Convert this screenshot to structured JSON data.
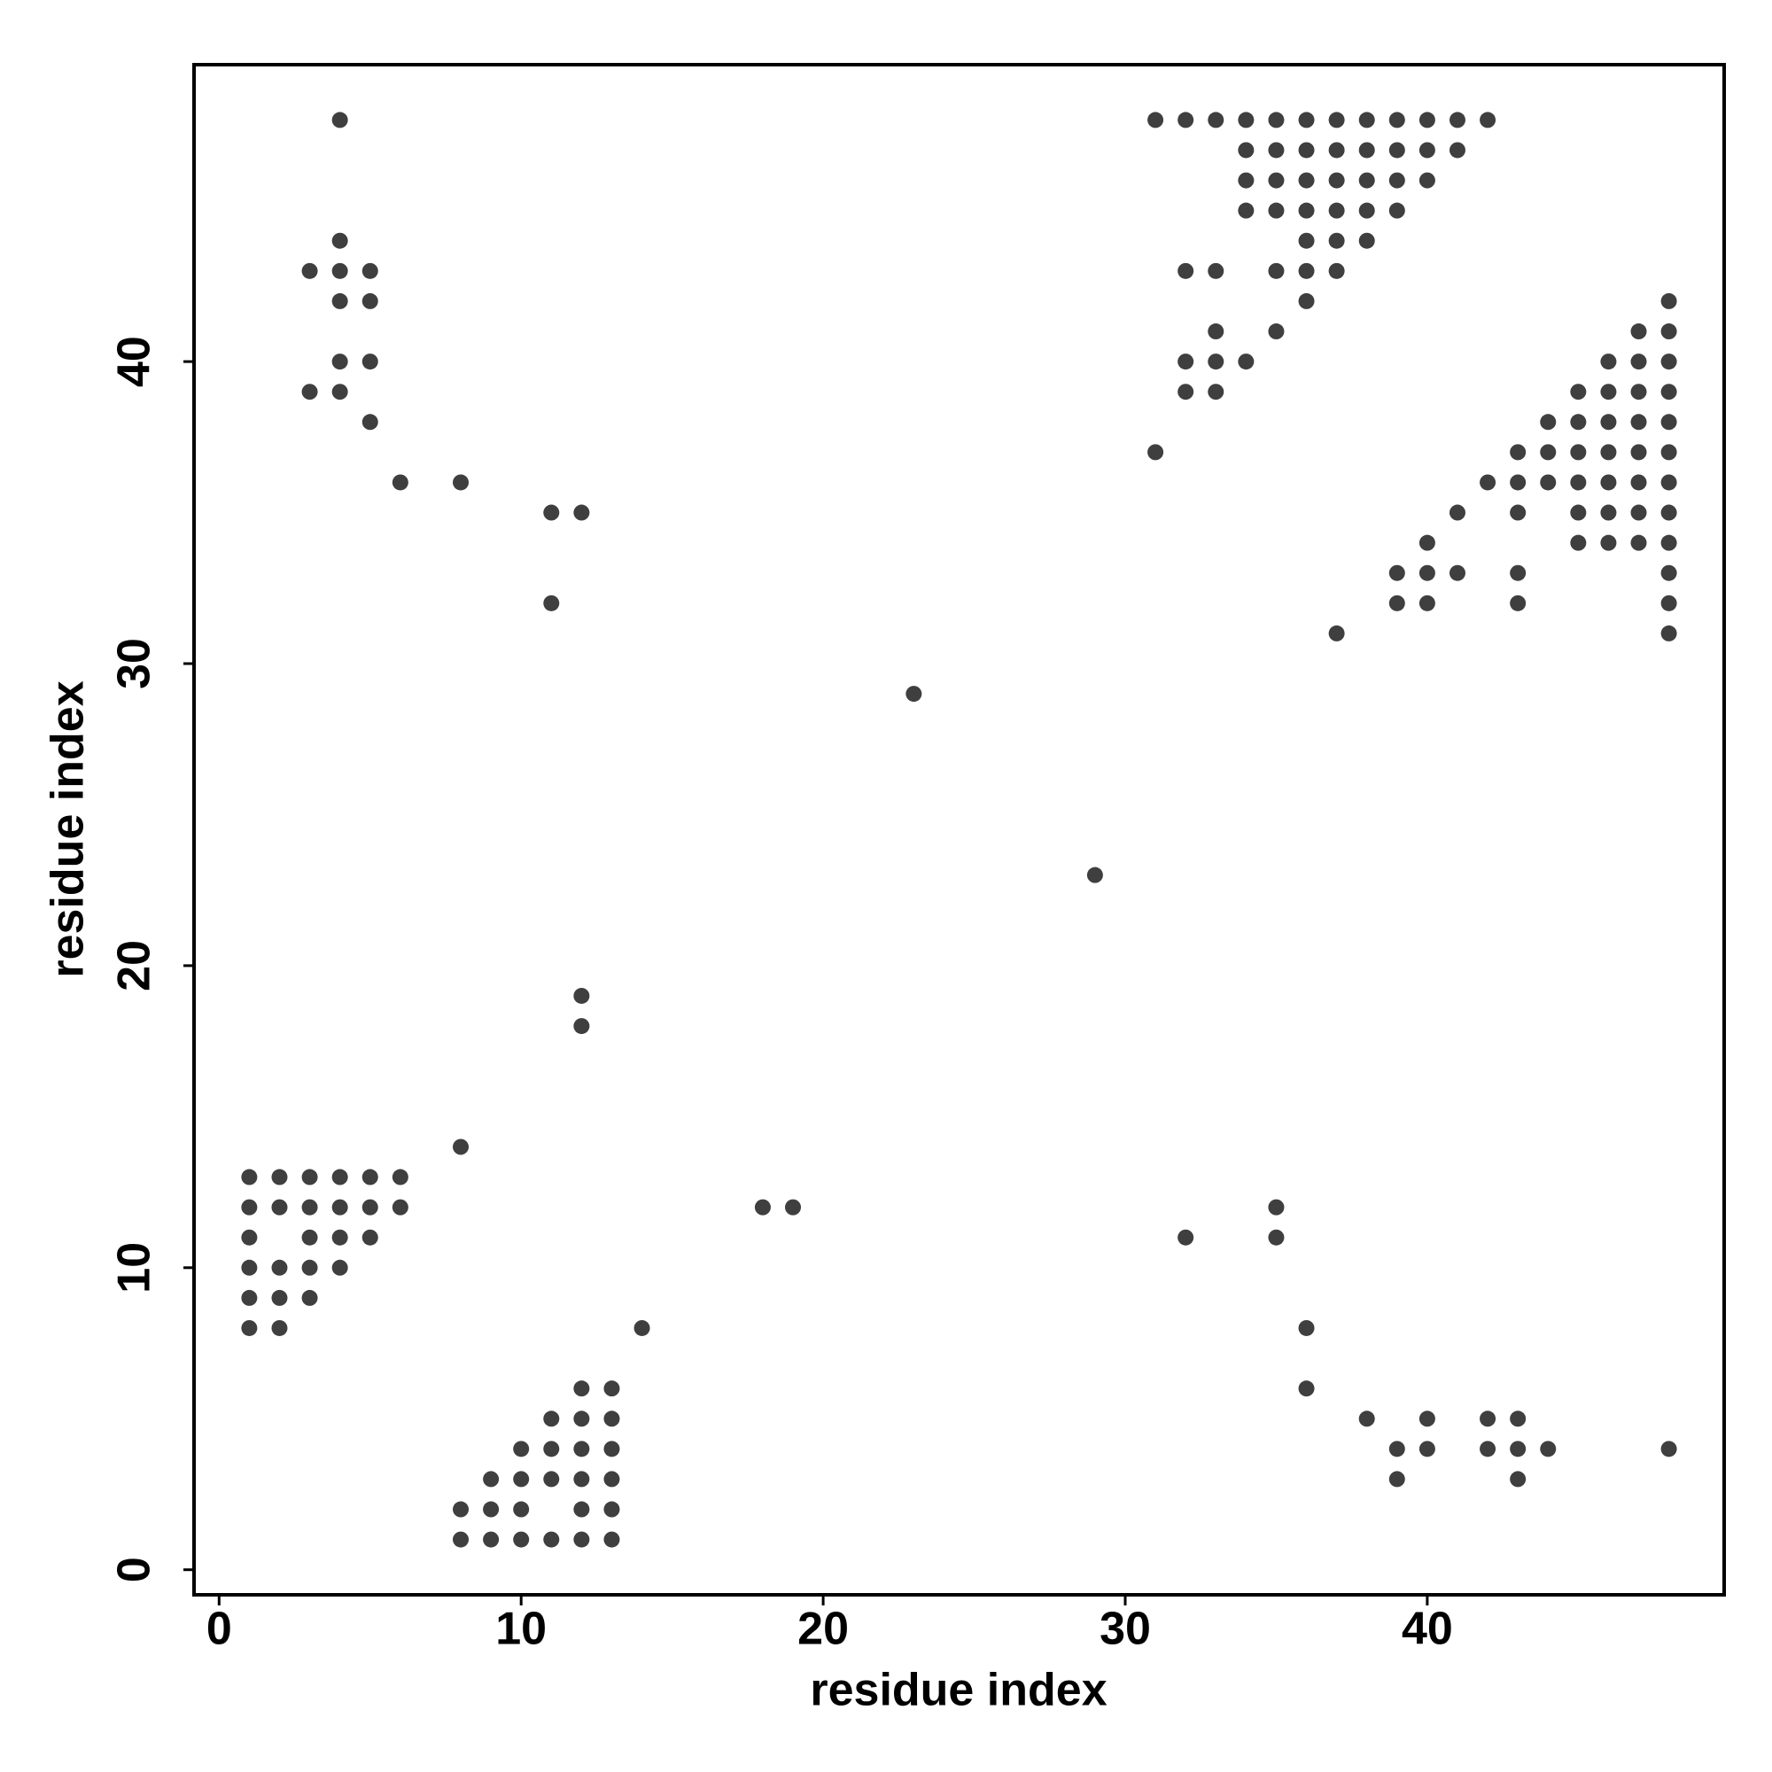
{
  "chart_data": {
    "type": "scatter",
    "x_label": "residue index",
    "y_label": "residue index",
    "xlim": [
      -0.83,
      49.83
    ],
    "ylim": [
      -0.83,
      49.83
    ],
    "xticks": [
      0,
      10,
      20,
      30,
      40
    ],
    "yticks": [
      0,
      10,
      20,
      30,
      40
    ],
    "color": "#3f3f3f",
    "x": [
      4,
      31,
      32,
      33,
      34,
      35,
      36,
      37,
      38,
      39,
      40,
      41,
      42,
      34,
      35,
      36,
      37,
      38,
      39,
      40,
      41,
      34,
      35,
      36,
      37,
      38,
      39,
      40,
      34,
      35,
      36,
      37,
      38,
      39,
      4,
      36,
      37,
      38,
      3,
      4,
      5,
      32,
      33,
      35,
      36,
      37,
      4,
      5,
      36,
      48,
      33,
      35,
      47,
      48,
      4,
      5,
      32,
      33,
      34,
      46,
      47,
      48,
      3,
      4,
      32,
      33,
      45,
      46,
      47,
      48,
      5,
      44,
      45,
      46,
      47,
      48,
      31,
      43,
      44,
      45,
      46,
      47,
      48,
      6,
      8,
      42,
      43,
      44,
      45,
      46,
      47,
      48,
      11,
      12,
      41,
      43,
      45,
      46,
      47,
      48,
      40,
      45,
      46,
      47,
      48,
      39,
      40,
      41,
      43,
      48,
      11,
      39,
      40,
      43,
      48,
      37,
      48,
      23,
      29,
      12,
      12,
      8,
      1,
      2,
      3,
      4,
      5,
      6,
      1,
      2,
      3,
      4,
      5,
      6,
      18,
      19,
      35,
      1,
      3,
      4,
      5,
      32,
      35,
      1,
      2,
      3,
      4,
      1,
      2,
      3,
      1,
      2,
      14,
      36,
      12,
      13,
      36,
      11,
      12,
      13,
      38,
      40,
      42,
      43,
      10,
      11,
      12,
      13,
      39,
      40,
      42,
      43,
      44,
      48,
      9,
      10,
      11,
      12,
      13,
      39,
      43,
      8,
      9,
      10,
      12,
      13,
      8,
      9,
      10,
      11,
      12,
      13
    ],
    "y": [
      48,
      48,
      48,
      48,
      48,
      48,
      48,
      48,
      48,
      48,
      48,
      48,
      48,
      47,
      47,
      47,
      47,
      47,
      47,
      47,
      47,
      46,
      46,
      46,
      46,
      46,
      46,
      46,
      45,
      45,
      45,
      45,
      45,
      45,
      44,
      44,
      44,
      44,
      43,
      43,
      43,
      43,
      43,
      43,
      43,
      43,
      42,
      42,
      42,
      42,
      41,
      41,
      41,
      41,
      40,
      40,
      40,
      40,
      40,
      40,
      40,
      40,
      39,
      39,
      39,
      39,
      39,
      39,
      39,
      39,
      38,
      38,
      38,
      38,
      38,
      38,
      37,
      37,
      37,
      37,
      37,
      37,
      37,
      36,
      36,
      36,
      36,
      36,
      36,
      36,
      36,
      36,
      35,
      35,
      35,
      35,
      35,
      35,
      35,
      35,
      34,
      34,
      34,
      34,
      34,
      33,
      33,
      33,
      33,
      33,
      32,
      32,
      32,
      32,
      32,
      31,
      31,
      29,
      23,
      19,
      18,
      14,
      13,
      13,
      13,
      13,
      13,
      13,
      12,
      12,
      12,
      12,
      12,
      12,
      12,
      12,
      12,
      11,
      11,
      11,
      11,
      11,
      11,
      10,
      10,
      10,
      10,
      9,
      9,
      9,
      8,
      8,
      8,
      8,
      6,
      6,
      6,
      5,
      5,
      5,
      5,
      5,
      5,
      5,
      4,
      4,
      4,
      4,
      4,
      4,
      4,
      4,
      4,
      4,
      3,
      3,
      3,
      3,
      3,
      3,
      3,
      2,
      2,
      2,
      2,
      2,
      1,
      1,
      1,
      1,
      1,
      1
    ]
  }
}
